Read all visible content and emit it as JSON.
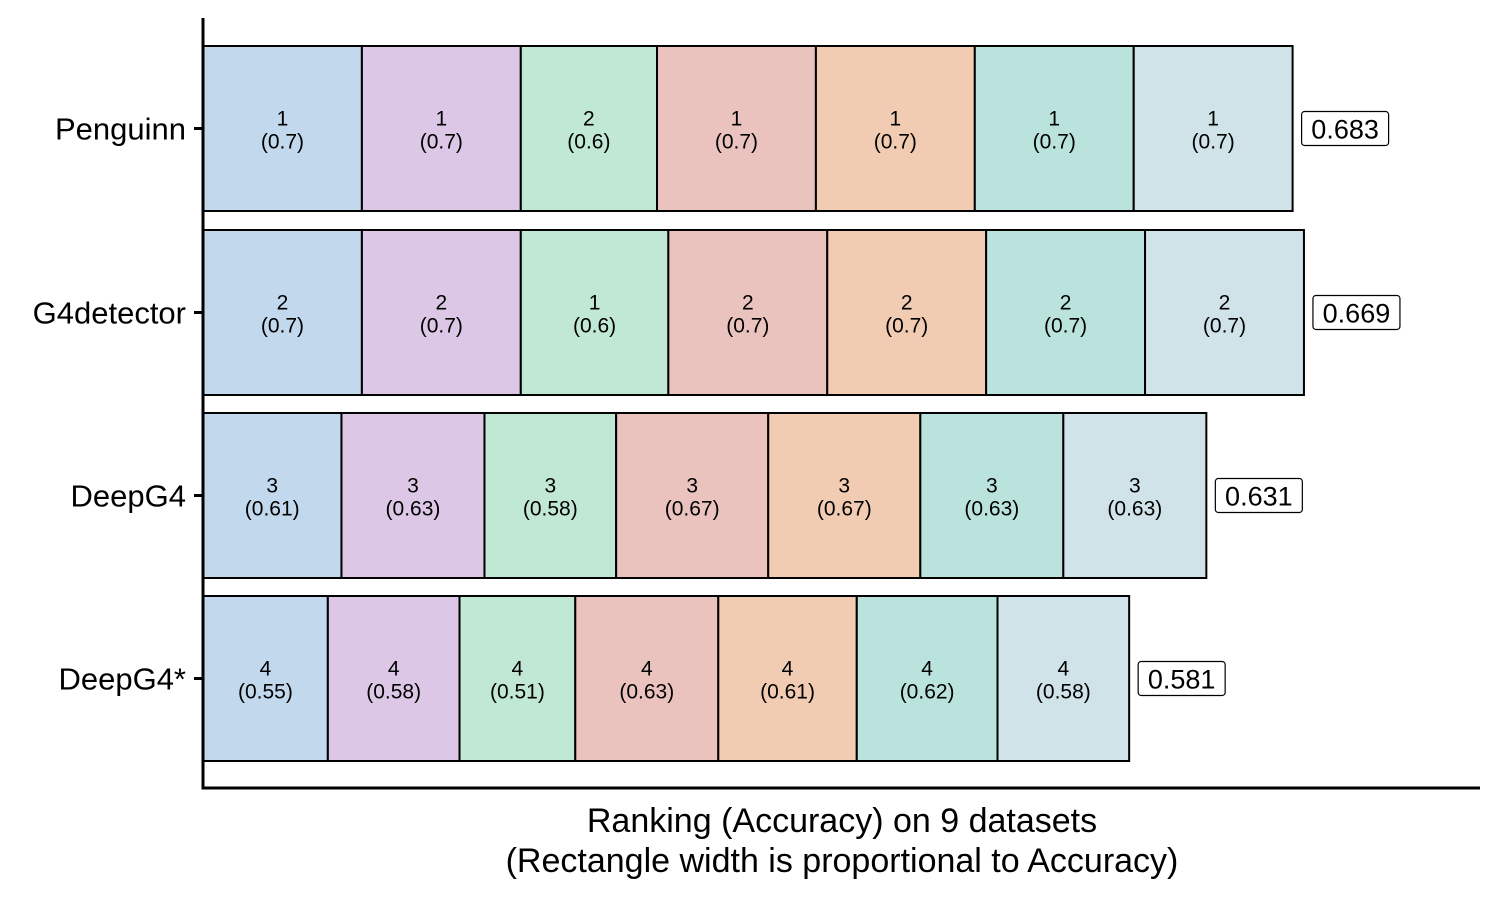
{
  "chart_data": {
    "type": "bar",
    "orientation": "horizontal-stacked",
    "xlabel_line1": "Ranking (Accuracy) on 9 datasets",
    "xlabel_line2": "(Rectangle width is proportional to Accuracy)",
    "segment_colors": [
      "#c2d8ec",
      "#dcc8e6",
      "#c0e8d4",
      "#eac3be",
      "#f2ccb2",
      "#b9e3dc",
      "#d0e3e9"
    ],
    "rows": [
      {
        "label": "Penguinn",
        "total_label": "0.683",
        "widths": [
          0.7,
          0.7,
          0.6,
          0.7,
          0.7,
          0.7,
          0.7
        ],
        "segments": [
          {
            "rank": "1",
            "value": "(0.7)"
          },
          {
            "rank": "1",
            "value": "(0.7)"
          },
          {
            "rank": "2",
            "value": "(0.6)"
          },
          {
            "rank": "1",
            "value": "(0.7)"
          },
          {
            "rank": "1",
            "value": "(0.7)"
          },
          {
            "rank": "1",
            "value": "(0.7)"
          },
          {
            "rank": "1",
            "value": "(0.7)"
          }
        ]
      },
      {
        "label": "G4detector",
        "total_label": "0.669",
        "widths": [
          0.7,
          0.7,
          0.65,
          0.7,
          0.7,
          0.7,
          0.7
        ],
        "segments": [
          {
            "rank": "2",
            "value": "(0.7)"
          },
          {
            "rank": "2",
            "value": "(0.7)"
          },
          {
            "rank": "1",
            "value": "(0.6)"
          },
          {
            "rank": "2",
            "value": "(0.7)"
          },
          {
            "rank": "2",
            "value": "(0.7)"
          },
          {
            "rank": "2",
            "value": "(0.7)"
          },
          {
            "rank": "2",
            "value": "(0.7)"
          }
        ]
      },
      {
        "label": "DeepG4",
        "total_label": "0.631",
        "widths": [
          0.61,
          0.63,
          0.58,
          0.67,
          0.67,
          0.63,
          0.63
        ],
        "segments": [
          {
            "rank": "3",
            "value": "(0.61)"
          },
          {
            "rank": "3",
            "value": "(0.63)"
          },
          {
            "rank": "3",
            "value": "(0.58)"
          },
          {
            "rank": "3",
            "value": "(0.67)"
          },
          {
            "rank": "3",
            "value": "(0.67)"
          },
          {
            "rank": "3",
            "value": "(0.63)"
          },
          {
            "rank": "3",
            "value": "(0.63)"
          }
        ]
      },
      {
        "label": "DeepG4*",
        "total_label": "0.581",
        "widths": [
          0.55,
          0.58,
          0.51,
          0.63,
          0.61,
          0.62,
          0.58
        ],
        "segments": [
          {
            "rank": "4",
            "value": "(0.55)"
          },
          {
            "rank": "4",
            "value": "(0.58)"
          },
          {
            "rank": "4",
            "value": "(0.51)"
          },
          {
            "rank": "4",
            "value": "(0.63)"
          },
          {
            "rank": "4",
            "value": "(0.61)"
          },
          {
            "rank": "4",
            "value": "(0.62)"
          },
          {
            "rank": "4",
            "value": "(0.58)"
          }
        ]
      }
    ]
  }
}
